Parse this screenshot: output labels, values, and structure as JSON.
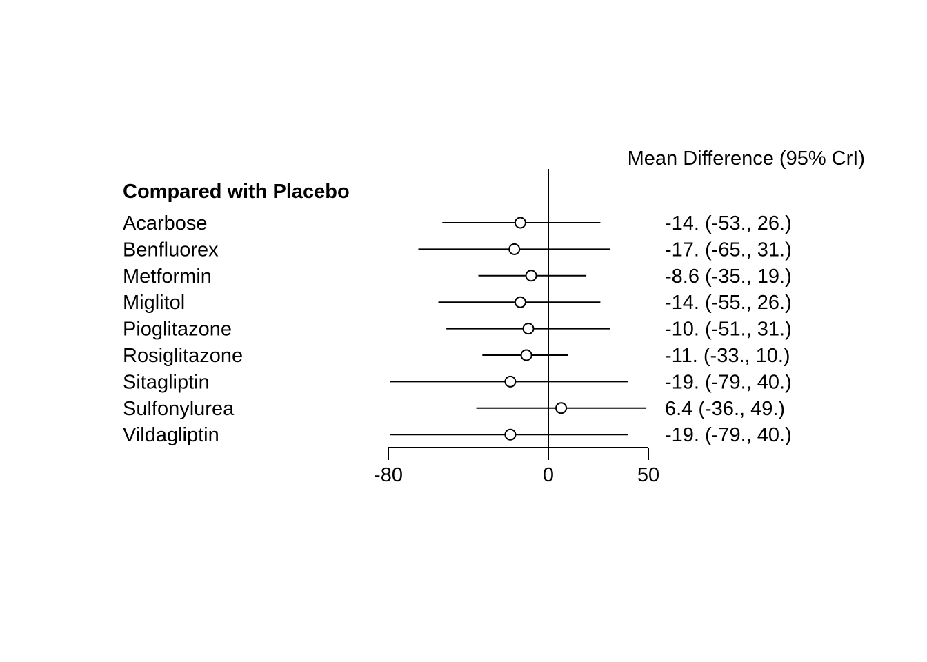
{
  "chart_data": {
    "type": "forest",
    "title": "",
    "column_header": "Mean Difference (95% CrI)",
    "group_label": "Compared with Placebo",
    "xlabel": "",
    "ylabel": "",
    "xlim": [
      -80,
      50
    ],
    "x_ticks": [
      -80,
      0,
      50
    ],
    "x_tick_labels": [
      "-80",
      "0",
      "50"
    ],
    "reference_line": 0,
    "rows": [
      {
        "label": "Acarbose",
        "estimate": -14,
        "lower": -53,
        "upper": 26,
        "text": "-14. (-53., 26.)"
      },
      {
        "label": "Benfluorex",
        "estimate": -17,
        "lower": -65,
        "upper": 31,
        "text": "-17. (-65., 31.)"
      },
      {
        "label": "Metformin",
        "estimate": -8.6,
        "lower": -35,
        "upper": 19,
        "text": "-8.6 (-35., 19.)"
      },
      {
        "label": "Miglitol",
        "estimate": -14,
        "lower": -55,
        "upper": 26,
        "text": "-14. (-55., 26.)"
      },
      {
        "label": "Pioglitazone",
        "estimate": -10,
        "lower": -51,
        "upper": 31,
        "text": "-10. (-51., 31.)"
      },
      {
        "label": "Rosiglitazone",
        "estimate": -11,
        "lower": -33,
        "upper": 10,
        "text": "-11. (-33., 10.)"
      },
      {
        "label": "Sitagliptin",
        "estimate": -19,
        "lower": -79,
        "upper": 40,
        "text": "-19. (-79., 40.)"
      },
      {
        "label": "Sulfonylurea",
        "estimate": 6.4,
        "lower": -36,
        "upper": 49,
        "text": "6.4 (-36., 49.)"
      },
      {
        "label": "Vildagliptin",
        "estimate": -19,
        "lower": -79,
        "upper": 40,
        "text": "-19. (-79., 40.)"
      }
    ]
  }
}
